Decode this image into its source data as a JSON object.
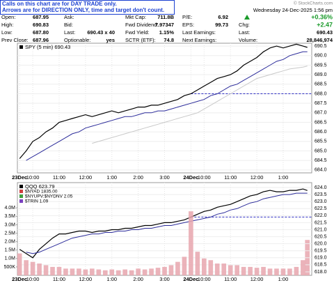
{
  "header": {
    "note": [
      "Calls on this chart are for DAY TRADE only.",
      "Arrows are for DIRECTION ONLY, time and target don't count."
    ],
    "watermark": "© StockCharts.com",
    "datetime": "Wednesday 24-Dec-2025  1:56 pm",
    "rows": [
      [
        {
          "label": "Open:",
          "value": "687.95"
        },
        {
          "label": "Ask:"
        },
        {
          "label": "Mkt Cap:",
          "value": "711.8B"
        },
        {
          "label": "P/E:",
          "value": "6.92"
        },
        {
          "value": "+0.36%"
        }
      ],
      [
        {
          "label": "High:",
          "value": "690.83"
        },
        {
          "label": "Bid:"
        },
        {
          "label": "Fwd Dividend:",
          "value": "7.97347"
        },
        {
          "label": "EPS:",
          "value": "99.73"
        },
        {
          "label": "Chg:",
          "value": "+2.47"
        }
      ],
      [
        {
          "label": "Low:",
          "value": "687.80"
        },
        {
          "label": "Last:",
          "value": "690.43 x 40"
        },
        {
          "label": "Fwd Yield:",
          "value": "1.15%"
        },
        {
          "label": "Last Earnings:"
        },
        {
          "label": "Last:",
          "value": "690.43"
        }
      ],
      [
        {
          "label": "Prev Close:",
          "value": "687.96"
        },
        {
          "label": "Optionable:",
          "value": "yes"
        },
        {
          "label": "SCTR (ETF):",
          "value": "74.8"
        },
        {
          "label": "Next Earnings:"
        },
        {
          "label": "Volume:",
          "value": "28,846,974"
        }
      ]
    ]
  },
  "chart_data": [
    {
      "type": "line",
      "x": [
        0,
        3,
        6,
        9,
        12,
        15,
        18,
        21,
        24,
        27,
        30,
        33,
        36,
        39,
        42,
        45,
        48,
        51,
        54,
        57,
        60,
        63,
        66,
        69,
        72,
        75,
        78,
        81,
        84,
        87,
        90,
        93,
        96,
        99,
        102,
        105,
        108,
        111,
        114,
        117,
        120,
        123,
        126,
        129,
        131
      ],
      "xlim": [
        -1,
        133
      ],
      "xticks": [
        {
          "value": 0,
          "label": "23Dec"
        },
        {
          "value": 6,
          "label": "10:00"
        },
        {
          "value": 18,
          "label": "11:00"
        },
        {
          "value": 30,
          "label": "12:00"
        },
        {
          "value": 42,
          "label": "1:00"
        },
        {
          "value": 54,
          "label": "2:00"
        },
        {
          "value": 66,
          "label": "3:00"
        },
        {
          "value": 78,
          "label": "24Dec"
        },
        {
          "value": 84,
          "label": "10:00"
        },
        {
          "value": 96,
          "label": "11:00"
        },
        {
          "value": 108,
          "label": "12:00"
        },
        {
          "value": 120,
          "label": "1:00"
        }
      ],
      "ylim": [
        683.85,
        690.65
      ],
      "yticks": [
        {
          "value": 684,
          "label": "684.0"
        },
        684.5,
        {
          "value": 685,
          "label": "685.0"
        },
        685.5,
        {
          "value": 686,
          "label": "686.0"
        },
        686.5,
        {
          "value": 687,
          "label": "687.0"
        },
        687.5,
        {
          "value": 688,
          "label": "688.0"
        },
        688.5,
        {
          "value": 689,
          "label": "689.0"
        },
        689.5,
        {
          "value": 690,
          "label": "690.0"
        },
        690.5
      ],
      "grid": true,
      "reference_line": 688.0,
      "series": [
        {
          "name": "SPY (5 min) 690.43",
          "color": "#000000",
          "values": [
            684.6,
            685.0,
            685.5,
            685.7,
            686.0,
            686.2,
            686.5,
            686.6,
            686.7,
            686.8,
            686.9,
            686.8,
            686.9,
            687.0,
            687.1,
            687.0,
            687.1,
            687.2,
            687.3,
            687.3,
            687.4,
            687.4,
            687.5,
            687.6,
            687.7,
            687.9,
            688.0,
            688.2,
            688.4,
            688.6,
            688.8,
            688.9,
            689.0,
            689.2,
            689.5,
            689.7,
            689.9,
            690.2,
            690.4,
            690.5,
            690.4,
            690.5,
            690.6,
            690.5,
            690.43
          ]
        },
        {
          "color": "#2b2b9a",
          "values": [
            null,
            684.5,
            684.7,
            684.9,
            685.1,
            685.3,
            685.5,
            685.7,
            685.9,
            686.0,
            686.2,
            686.3,
            686.4,
            686.5,
            686.6,
            686.7,
            686.8,
            686.8,
            686.9,
            687.0,
            687.0,
            687.1,
            687.1,
            687.2,
            687.3,
            687.4,
            687.5,
            687.6,
            687.7,
            687.9,
            688.0,
            688.2,
            688.4,
            688.5,
            688.7,
            688.9,
            689.1,
            689.3,
            689.5,
            689.7,
            689.8,
            690.0,
            690.1,
            690.2,
            690.2
          ]
        },
        {
          "color": "#c8c8c8",
          "values": [
            null,
            null,
            null,
            null,
            null,
            null,
            null,
            null,
            null,
            null,
            null,
            685.4,
            685.5,
            685.6,
            685.7,
            685.8,
            685.9,
            686.0,
            686.1,
            686.2,
            686.3,
            686.4,
            686.5,
            686.6,
            686.7,
            686.8,
            686.9,
            687.0,
            687.2,
            687.4,
            687.6,
            687.8,
            688.0,
            688.2,
            688.4,
            688.6,
            688.8,
            688.9,
            689.0,
            689.1,
            689.2,
            689.3,
            689.35,
            689.4,
            689.45
          ]
        }
      ]
    },
    {
      "type": "line",
      "x": [
        0,
        3,
        6,
        9,
        12,
        15,
        18,
        21,
        24,
        27,
        30,
        33,
        36,
        39,
        42,
        45,
        48,
        51,
        54,
        57,
        60,
        63,
        66,
        69,
        72,
        75,
        78,
        81,
        84,
        87,
        90,
        93,
        96,
        99,
        102,
        105,
        108,
        111,
        114,
        117,
        120,
        123,
        126,
        129,
        131
      ],
      "xlim": [
        -1,
        133
      ],
      "xticks": [
        {
          "value": 0,
          "label": "23Dec"
        },
        {
          "value": 6,
          "label": "10:00"
        },
        {
          "value": 18,
          "label": "11:00"
        },
        {
          "value": 30,
          "label": "12:00"
        },
        {
          "value": 42,
          "label": "1:00"
        },
        {
          "value": 54,
          "label": "2:00"
        },
        {
          "value": 66,
          "label": "3:00"
        },
        {
          "value": 78,
          "label": "24Dec"
        },
        {
          "value": 84,
          "label": "10:00"
        },
        {
          "value": 96,
          "label": "11:00"
        },
        {
          "value": 108,
          "label": "12:00"
        },
        {
          "value": 120,
          "label": "1:00"
        }
      ],
      "ylim": [
        617.75,
        624.35
      ],
      "yticks": [
        {
          "value": 618,
          "label": "618.0"
        },
        618.5,
        {
          "value": 619,
          "label": "619.0"
        },
        619.5,
        {
          "value": 620,
          "label": "620.0"
        },
        620.5,
        {
          "value": 621,
          "label": "621.0"
        },
        621.5,
        {
          "value": 622,
          "label": "622.0"
        },
        622.5,
        {
          "value": 623,
          "label": "623.0"
        },
        623.5,
        {
          "value": 624,
          "label": "624.0"
        }
      ],
      "y2lim": [
        0,
        5500000
      ],
      "y2ticks": [
        {
          "value": 500000,
          "label": "500K"
        },
        {
          "value": 1000000,
          "label": "1.0M"
        },
        {
          "value": 1500000,
          "label": "1.5M"
        },
        {
          "value": 2000000,
          "label": "2.0M"
        },
        {
          "value": 2500000,
          "label": "2.5M"
        },
        {
          "value": 3000000,
          "label": "3.0M"
        },
        {
          "value": 3500000,
          "label": "3.5M"
        },
        {
          "value": 4000000,
          "label": "4.0M"
        }
      ],
      "grid": true,
      "reference_line": 621.9,
      "annotations": [
        "$NYAD 1835.00",
        "$NYUPV:$NYDNV 2.05",
        "$TRIN 1.09"
      ],
      "annotation_colors": [
        "#d04040",
        "#40a040",
        "#7a40c0"
      ],
      "series": [
        {
          "name": "QQQ 623.79",
          "color": "#000000",
          "values": [
            619.6,
            619.3,
            619.0,
            619.6,
            620.0,
            620.4,
            620.7,
            620.7,
            620.8,
            620.9,
            620.9,
            620.8,
            620.9,
            620.9,
            621.0,
            621.0,
            621.1,
            621.1,
            621.2,
            621.3,
            621.3,
            621.4,
            621.5,
            621.5,
            621.6,
            621.7,
            621.9,
            622.1,
            622.3,
            622.4,
            622.6,
            622.7,
            622.8,
            623.0,
            623.2,
            623.4,
            623.5,
            623.7,
            623.8,
            623.7,
            623.7,
            623.8,
            623.8,
            623.9,
            623.79
          ]
        },
        {
          "color": "#2b2b9a",
          "values": [
            null,
            619.4,
            619.3,
            619.4,
            619.6,
            619.8,
            620.0,
            620.2,
            620.4,
            620.5,
            620.6,
            620.7,
            620.7,
            620.8,
            620.8,
            620.9,
            620.9,
            621.0,
            621.0,
            621.1,
            621.1,
            621.2,
            621.3,
            621.3,
            621.4,
            621.5,
            621.6,
            621.7,
            621.8,
            621.9,
            622.1,
            622.2,
            622.4,
            622.5,
            622.7,
            622.9,
            623.0,
            623.2,
            623.3,
            623.4,
            623.5,
            623.5,
            623.6,
            623.6,
            623.6
          ]
        },
        {
          "type": "bar",
          "axis": "y2",
          "color": "#e8a6ae",
          "values": [
            1300000,
            900000,
            800000,
            700000,
            600000,
            500000,
            500000,
            400000,
            400000,
            400000,
            350000,
            400000,
            350000,
            300000,
            350000,
            300000,
            350000,
            300000,
            400000,
            350000,
            400000,
            450000,
            500000,
            600000,
            800000,
            1100000,
            3800000,
            1400000,
            1000000,
            900000,
            700000,
            700000,
            600000,
            600000,
            500000,
            500000,
            450000,
            500000,
            400000,
            400000,
            400000,
            400000,
            500000,
            900000,
            2100000
          ]
        }
      ]
    }
  ]
}
